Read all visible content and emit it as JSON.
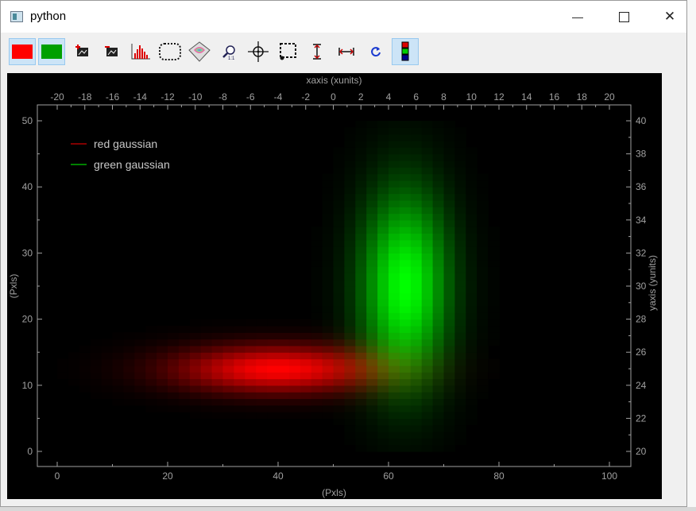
{
  "window": {
    "title": "python"
  },
  "titlebar_buttons": {
    "minimize": "—",
    "close": "✕"
  },
  "toolbar": {
    "buttons": [
      {
        "name": "red-color-button",
        "icon": "red-swatch",
        "color": "#ff0000",
        "active": true
      },
      {
        "name": "green-color-button",
        "icon": "green-swatch",
        "color": "#00a000",
        "active": true
      },
      {
        "name": "image-add-button",
        "icon": "image-plus-icon"
      },
      {
        "name": "image-remove-button",
        "icon": "image-minus-icon"
      },
      {
        "name": "histogram-button",
        "icon": "histogram-icon"
      },
      {
        "name": "roi-button",
        "icon": "dotted-roi-icon"
      },
      {
        "name": "surface-3d-button",
        "icon": "surface-3d-icon"
      },
      {
        "name": "zoom-11-button",
        "icon": "zoom-1-1-icon"
      },
      {
        "name": "crosshair-button",
        "icon": "crosshair-icon"
      },
      {
        "name": "zoom-select-button",
        "icon": "zoom-select-icon"
      },
      {
        "name": "vertical-range-button",
        "icon": "vertical-range-icon"
      },
      {
        "name": "horizontal-range-button",
        "icon": "horizontal-range-icon"
      },
      {
        "name": "refresh-button",
        "icon": "refresh-icon"
      },
      {
        "name": "colormap-button",
        "icon": "colormap-icon",
        "active": true
      }
    ]
  },
  "colors": {
    "red": "#ff0000",
    "green": "#00ff00",
    "background": "#000000",
    "axis": "#a0a0a0"
  },
  "chart_data": {
    "type": "heatmap",
    "top_axis_label": "xaxis (xunits)",
    "bottom_axis_label": "(Pxls)",
    "left_axis_label": "(Pxls)",
    "right_axis_label": "yaxis (yunits)",
    "top_ticks": [
      "-20",
      "-18",
      "-16",
      "-14",
      "-12",
      "-10",
      "-8",
      "-6",
      "-4",
      "-2",
      "0",
      "2",
      "4",
      "6",
      "8",
      "10",
      "12",
      "14",
      "16",
      "18",
      "20"
    ],
    "bottom_ticks": [
      "0",
      "20",
      "40",
      "60",
      "80",
      "100"
    ],
    "left_ticks": [
      "0",
      "10",
      "20",
      "30",
      "40",
      "50"
    ],
    "right_ticks": [
      "20",
      "22",
      "24",
      "26",
      "28",
      "30",
      "32",
      "34",
      "36",
      "38",
      "40"
    ],
    "xlim_pxls": [
      0,
      100
    ],
    "ylim_pxls": [
      0,
      50
    ],
    "xlim_units": [
      -20,
      20
    ],
    "ylim_units": [
      20,
      40
    ],
    "legend": {
      "placement": "top-left",
      "entries": [
        {
          "label": "red gaussian",
          "color": "#ff0000"
        },
        {
          "label": "green gaussian",
          "color": "#00ff00"
        }
      ]
    },
    "series": [
      {
        "name": "red gaussian",
        "color": "#ff0000",
        "center_x": 40,
        "center_y": 12.5,
        "sigma_x": 13,
        "sigma_y": 2.5
      },
      {
        "name": "green gaussian",
        "color": "#00ff00",
        "center_x": 63,
        "center_y": 25,
        "sigma_x": 5.5,
        "sigma_y": 10
      }
    ],
    "image_extent": {
      "x": [
        0,
        80
      ],
      "y": [
        0,
        50
      ]
    }
  }
}
